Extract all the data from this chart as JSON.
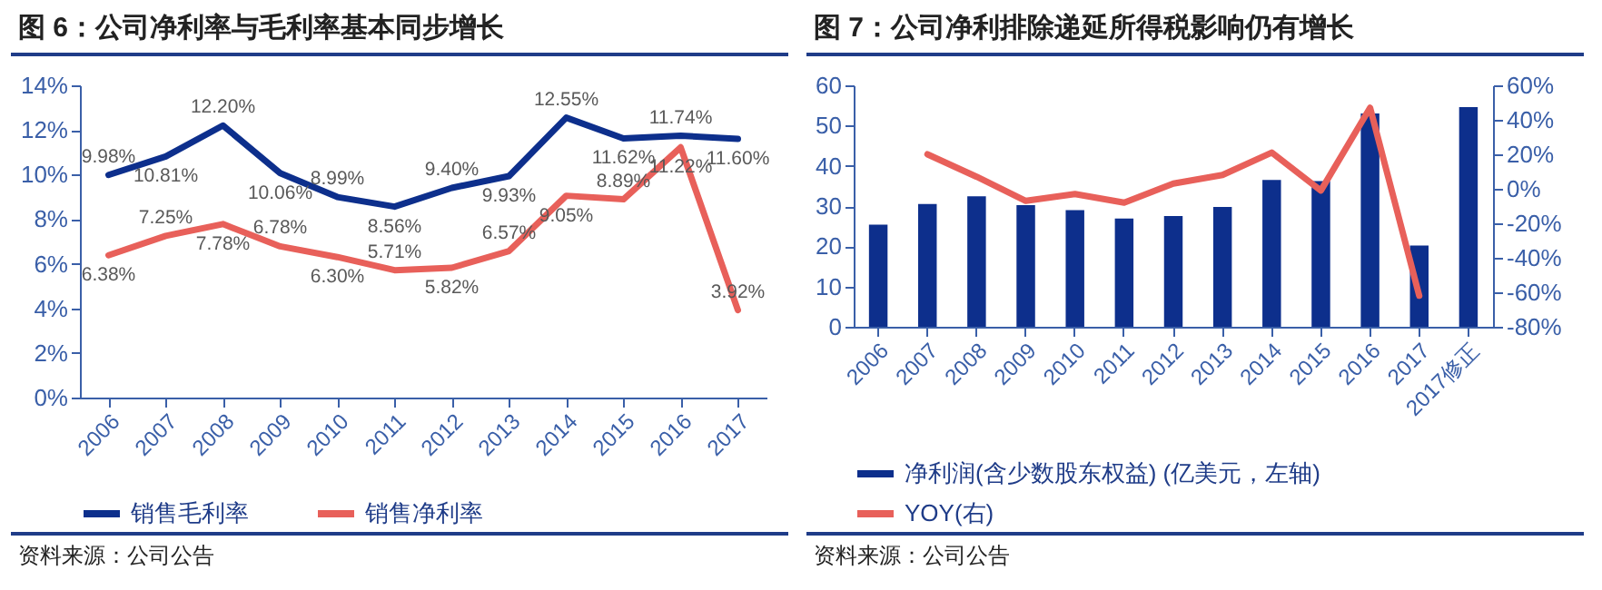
{
  "chart_data": [
    {
      "type": "line",
      "title": "图 6：公司净利率与毛利率基本同步增长",
      "categories": [
        "2006",
        "2007",
        "2008",
        "2009",
        "2010",
        "2011",
        "2012",
        "2013",
        "2014",
        "2015",
        "2016",
        "2017"
      ],
      "series": [
        {
          "name": "销售毛利率",
          "color": "#0d2f8c",
          "values": [
            9.98,
            10.81,
            12.2,
            10.06,
            8.99,
            8.56,
            9.4,
            9.93,
            12.55,
            11.62,
            11.74,
            11.6
          ],
          "value_labels": [
            "9.98%",
            "10.81%",
            "12.20%",
            "10.06%",
            "8.99%",
            "8.56%",
            "9.40%",
            "9.93%",
            "12.55%",
            "11.62%",
            "11.74%",
            "11.60%"
          ]
        },
        {
          "name": "销售净利率",
          "color": "#e8605a",
          "values": [
            6.38,
            7.25,
            7.78,
            6.78,
            6.3,
            5.71,
            5.82,
            6.57,
            9.05,
            8.89,
            11.22,
            3.92
          ],
          "value_labels": [
            "6.38%",
            "7.25%",
            "7.78%",
            "6.78%",
            "6.30%",
            "5.71%",
            "5.82%",
            "6.57%",
            "9.05%",
            "8.89%",
            "11.22%",
            "3.92%"
          ]
        }
      ],
      "ylim": [
        0,
        14
      ],
      "yticks": [
        {
          "value": 0,
          "label": "0%"
        },
        {
          "value": 2,
          "label": "2%"
        },
        {
          "value": 4,
          "label": "4%"
        },
        {
          "value": 6,
          "label": "6%"
        },
        {
          "value": 8,
          "label": "8%"
        },
        {
          "value": 10,
          "label": "10%"
        },
        {
          "value": 12,
          "label": "12%"
        },
        {
          "value": 14,
          "label": "14%"
        }
      ],
      "legend": "bottom",
      "annotations": [
        "资料来源：公司公告"
      ]
    },
    {
      "type": "bar",
      "title": "图 7：公司净利排除递延所得税影响仍有增长",
      "categories": [
        "2006",
        "2007",
        "2008",
        "2009",
        "2010",
        "2011",
        "2012",
        "2013",
        "2014",
        "2015",
        "2016",
        "2017",
        "2017修正"
      ],
      "series": [
        {
          "name": "净利润(含少数股东权益) (亿美元，左轴)",
          "color": "#0d2f8c",
          "values": [
            25.4,
            30.5,
            32.4,
            30.2,
            29,
            26.9,
            27.5,
            29.8,
            36.5,
            36.2,
            53,
            20.2,
            54.6
          ]
        },
        {
          "name": "YOY(右)",
          "type": "line",
          "axis": "y2",
          "color": "#e8605a",
          "values": [
            null,
            20,
            7,
            -7,
            -3,
            -8,
            3,
            8,
            21,
            -1,
            47,
            -62,
            null
          ]
        }
      ],
      "ylim": [
        0,
        60
      ],
      "yticks": [
        0,
        10,
        20,
        30,
        40,
        50,
        60
      ],
      "y2lim": [
        -80,
        60
      ],
      "y2ticks": [
        {
          "value": -80,
          "label": "-80%"
        },
        {
          "value": -60,
          "label": "-60%"
        },
        {
          "value": -40,
          "label": "-40%"
        },
        {
          "value": -20,
          "label": "-20%"
        },
        {
          "value": 0,
          "label": "0%"
        },
        {
          "value": 20,
          "label": "20%"
        },
        {
          "value": 40,
          "label": "40%"
        },
        {
          "value": 60,
          "label": "60%"
        }
      ],
      "legend": "bottom",
      "annotations": [
        "资料来源：公司公告"
      ]
    }
  ]
}
